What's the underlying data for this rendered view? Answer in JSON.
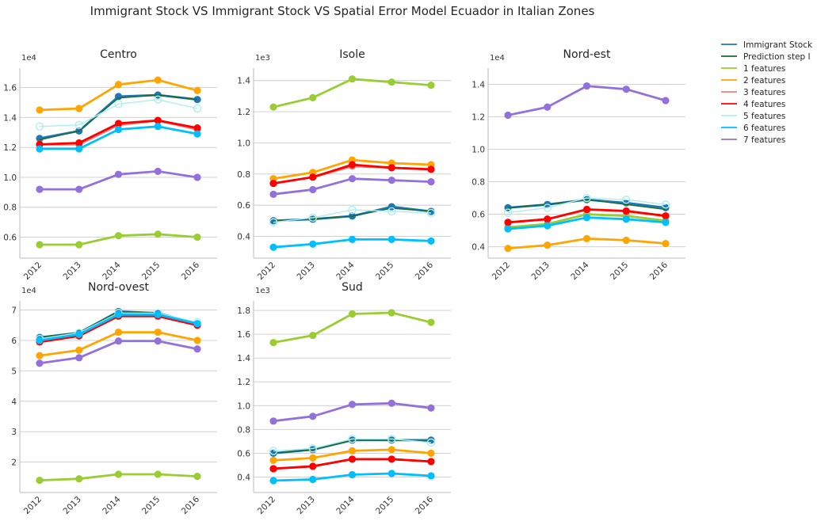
{
  "title": "Immigrant Stock VS Immigrant Stock VS Spatial Error Model Ecuador in Italian Zones",
  "chart_data": [
    {
      "type": "line",
      "title": "Centro",
      "multiplier_label": "1e4",
      "x": [
        2012,
        2013,
        2014,
        2015,
        2016
      ],
      "x_tick_labels": [
        "2012",
        "2013",
        "2014",
        "2015",
        "2016"
      ],
      "ylim": [
        0.46,
        1.73
      ],
      "y_ticks": [
        0.6,
        0.8,
        1.0,
        1.2,
        1.4,
        1.6
      ],
      "y_tick_labels": [
        "0.6",
        "0.8",
        "1.0",
        "1.2",
        "1.4",
        "1.6"
      ],
      "grid": true,
      "series": [
        {
          "name": "Immigrant Stock",
          "values": [
            1.26,
            1.31,
            1.54,
            1.55,
            1.52
          ]
        },
        {
          "name": "Prediction step I",
          "values": [
            1.25,
            1.31,
            1.53,
            1.55,
            1.52
          ]
        },
        {
          "name": "1 features",
          "values": [
            0.55,
            0.55,
            0.61,
            0.62,
            0.6
          ]
        },
        {
          "name": "2 features",
          "values": [
            1.45,
            1.46,
            1.62,
            1.65,
            1.58
          ]
        },
        {
          "name": "3 features",
          "values": [
            1.22,
            1.22,
            1.35,
            1.38,
            1.32
          ]
        },
        {
          "name": "4 features",
          "values": [
            1.22,
            1.23,
            1.36,
            1.38,
            1.33
          ]
        },
        {
          "name": "5 features",
          "values": [
            1.34,
            1.35,
            1.49,
            1.52,
            1.46
          ]
        },
        {
          "name": "6 features",
          "values": [
            1.19,
            1.19,
            1.32,
            1.34,
            1.29
          ]
        },
        {
          "name": "7 features",
          "values": [
            0.92,
            0.92,
            1.02,
            1.04,
            1.0
          ]
        }
      ]
    },
    {
      "type": "line",
      "title": "Isole",
      "multiplier_label": "1e3",
      "x": [
        2012,
        2013,
        2014,
        2015,
        2016
      ],
      "x_tick_labels": [
        "2012",
        "2013",
        "2014",
        "2015",
        "2016"
      ],
      "ylim": [
        0.26,
        1.48
      ],
      "y_ticks": [
        0.4,
        0.6,
        0.8,
        1.0,
        1.2,
        1.4
      ],
      "y_tick_labels": [
        "0.4",
        "0.6",
        "0.8",
        "1.0",
        "1.2",
        "1.4"
      ],
      "grid": true,
      "series": [
        {
          "name": "Immigrant Stock",
          "values": [
            0.5,
            0.51,
            0.53,
            0.59,
            0.56
          ]
        },
        {
          "name": "Prediction step I",
          "values": [
            0.5,
            0.51,
            0.53,
            0.58,
            0.56
          ]
        },
        {
          "name": "1 features",
          "values": [
            1.23,
            1.29,
            1.41,
            1.39,
            1.37
          ]
        },
        {
          "name": "2 features",
          "values": [
            0.77,
            0.81,
            0.89,
            0.87,
            0.86
          ]
        },
        {
          "name": "3 features",
          "values": [
            0.74,
            0.78,
            0.85,
            0.84,
            0.83
          ]
        },
        {
          "name": "4 features",
          "values": [
            0.74,
            0.78,
            0.86,
            0.84,
            0.83
          ]
        },
        {
          "name": "5 features",
          "values": [
            0.49,
            0.52,
            0.57,
            0.56,
            0.55
          ]
        },
        {
          "name": "6 features",
          "values": [
            0.33,
            0.35,
            0.38,
            0.38,
            0.37
          ]
        },
        {
          "name": "7 features",
          "values": [
            0.67,
            0.7,
            0.77,
            0.76,
            0.75
          ]
        }
      ]
    },
    {
      "type": "line",
      "title": "Nord-est",
      "multiplier_label": "1e4",
      "x": [
        2012,
        2013,
        2014,
        2015,
        2016
      ],
      "x_tick_labels": [
        "2012",
        "2013",
        "2014",
        "2015",
        "2016"
      ],
      "ylim": [
        0.33,
        1.5
      ],
      "y_ticks": [
        0.4,
        0.6,
        0.8,
        1.0,
        1.2,
        1.4
      ],
      "y_tick_labels": [
        "0.4",
        "0.6",
        "0.8",
        "1.0",
        "1.2",
        "1.4"
      ],
      "grid": true,
      "series": [
        {
          "name": "Immigrant Stock",
          "values": [
            0.64,
            0.66,
            0.69,
            0.67,
            0.64
          ]
        },
        {
          "name": "Prediction step I",
          "values": [
            0.64,
            0.66,
            0.69,
            0.66,
            0.63
          ]
        },
        {
          "name": "1 features",
          "values": [
            0.52,
            0.54,
            0.6,
            0.59,
            0.56
          ]
        },
        {
          "name": "2 features",
          "values": [
            0.39,
            0.41,
            0.45,
            0.44,
            0.42
          ]
        },
        {
          "name": "3 features",
          "values": [
            0.55,
            0.57,
            0.63,
            0.62,
            0.59
          ]
        },
        {
          "name": "4 features",
          "values": [
            0.55,
            0.57,
            0.63,
            0.62,
            0.59
          ]
        },
        {
          "name": "5 features",
          "values": [
            0.61,
            0.64,
            0.7,
            0.69,
            0.66
          ]
        },
        {
          "name": "6 features",
          "values": [
            0.51,
            0.53,
            0.58,
            0.57,
            0.55
          ]
        },
        {
          "name": "7 features",
          "values": [
            1.21,
            1.26,
            1.39,
            1.37,
            1.3
          ]
        }
      ]
    },
    {
      "type": "line",
      "title": "Nord-ovest",
      "multiplier_label": "1e4",
      "x": [
        2012,
        2013,
        2014,
        2015,
        2016
      ],
      "x_tick_labels": [
        "2012",
        "2013",
        "2014",
        "2015",
        "2016"
      ],
      "ylim": [
        1.0,
        7.3
      ],
      "y_ticks": [
        2,
        3,
        4,
        5,
        6,
        7
      ],
      "y_tick_labels": [
        "2",
        "3",
        "4",
        "5",
        "6",
        "7"
      ],
      "grid": true,
      "series": [
        {
          "name": "Immigrant Stock",
          "values": [
            6.1,
            6.25,
            6.95,
            6.9,
            6.55
          ]
        },
        {
          "name": "Prediction step I",
          "values": [
            6.1,
            6.25,
            6.95,
            6.9,
            6.55
          ]
        },
        {
          "name": "1 features",
          "values": [
            1.4,
            1.45,
            1.6,
            1.6,
            1.53
          ]
        },
        {
          "name": "2 features",
          "values": [
            5.5,
            5.68,
            6.27,
            6.27,
            6.0
          ]
        },
        {
          "name": "3 features",
          "values": [
            5.95,
            6.15,
            6.8,
            6.8,
            6.5
          ]
        },
        {
          "name": "4 features",
          "values": [
            5.95,
            6.15,
            6.8,
            6.8,
            6.5
          ]
        },
        {
          "name": "5 features",
          "values": [
            6.05,
            6.25,
            6.9,
            6.9,
            6.6
          ]
        },
        {
          "name": "6 features",
          "values": [
            6.0,
            6.2,
            6.85,
            6.85,
            6.55
          ]
        },
        {
          "name": "7 features",
          "values": [
            5.25,
            5.43,
            5.98,
            5.98,
            5.72
          ]
        }
      ]
    },
    {
      "type": "line",
      "title": "Sud",
      "multiplier_label": "1e3",
      "x": [
        2012,
        2013,
        2014,
        2015,
        2016
      ],
      "x_tick_labels": [
        "2012",
        "2013",
        "2014",
        "2015",
        "2016"
      ],
      "ylim": [
        0.27,
        1.88
      ],
      "y_ticks": [
        0.4,
        0.6,
        0.8,
        1.0,
        1.2,
        1.4,
        1.6,
        1.8
      ],
      "y_tick_labels": [
        "0.4",
        "0.6",
        "0.8",
        "1.0",
        "1.2",
        "1.4",
        "1.6",
        "1.8"
      ],
      "grid": true,
      "series": [
        {
          "name": "Immigrant Stock",
          "values": [
            0.6,
            0.63,
            0.71,
            0.71,
            0.71
          ]
        },
        {
          "name": "Prediction step I",
          "values": [
            0.6,
            0.63,
            0.71,
            0.71,
            0.7
          ]
        },
        {
          "name": "1 features",
          "values": [
            1.53,
            1.59,
            1.77,
            1.78,
            1.7
          ]
        },
        {
          "name": "2 features",
          "values": [
            0.54,
            0.56,
            0.62,
            0.63,
            0.6
          ]
        },
        {
          "name": "3 features",
          "values": [
            0.47,
            0.49,
            0.55,
            0.55,
            0.53
          ]
        },
        {
          "name": "4 features",
          "values": [
            0.47,
            0.49,
            0.55,
            0.55,
            0.53
          ]
        },
        {
          "name": "5 features",
          "values": [
            0.62,
            0.64,
            0.72,
            0.72,
            0.69
          ]
        },
        {
          "name": "6 features",
          "values": [
            0.37,
            0.38,
            0.42,
            0.43,
            0.41
          ]
        },
        {
          "name": "7 features",
          "values": [
            0.87,
            0.91,
            1.01,
            1.02,
            0.98
          ]
        }
      ]
    }
  ],
  "legend": {
    "placement": "top-right",
    "entries": [
      {
        "label": "Immigrant Stock",
        "color": "#1f77b4"
      },
      {
        "label": "Prediction step I",
        "color": "#1a6b2f"
      },
      {
        "label": "1 features",
        "color": "#9acd32"
      },
      {
        "label": "2 features",
        "color": "#ffa500"
      },
      {
        "label": "3 features",
        "color": "#f08080"
      },
      {
        "label": "4 features",
        "color": "#ff0000"
      },
      {
        "label": "5 features",
        "color": "#afeeee"
      },
      {
        "label": "6 features",
        "color": "#00bfff"
      },
      {
        "label": "7 features",
        "color": "#9370db"
      }
    ]
  },
  "series_styles": {
    "Immigrant Stock": {
      "color": "#1f77b4",
      "marker": "filled"
    },
    "Prediction step I": {
      "color": "#1a6b2f",
      "marker": "none"
    },
    "1 features": {
      "color": "#9acd32",
      "marker": "filled"
    },
    "2 features": {
      "color": "#ffa500",
      "marker": "filled"
    },
    "3 features": {
      "color": "#f08080",
      "marker": "filled"
    },
    "4 features": {
      "color": "#ff0000",
      "marker": "filled"
    },
    "5 features": {
      "color": "#afeeee",
      "marker": "hollow"
    },
    "6 features": {
      "color": "#00bfff",
      "marker": "filled"
    },
    "7 features": {
      "color": "#9370db",
      "marker": "filled"
    }
  },
  "grid_color": "#cccccc",
  "axis_color": "#bbbbbb"
}
